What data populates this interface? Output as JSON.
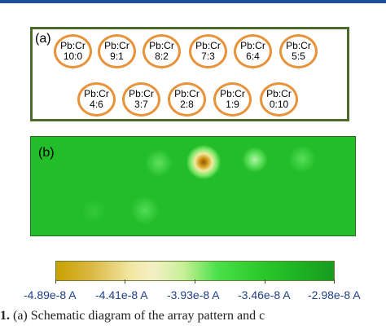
{
  "panel_a": {
    "label": "(a)",
    "spots": [
      {
        "line1": "Pb:Cr",
        "line2": "10:0"
      },
      {
        "line1": "Pb:Cr",
        "line2": "9:1"
      },
      {
        "line1": "Pb:Cr",
        "line2": "8:2"
      },
      {
        "line1": "Pb:Cr",
        "line2": "7:3"
      },
      {
        "line1": "Pb:Cr",
        "line2": "6:4"
      },
      {
        "line1": "Pb:Cr",
        "line2": "5:5"
      },
      {
        "line1": "Pb:Cr",
        "line2": "4:6"
      },
      {
        "line1": "Pb:Cr",
        "line2": "3:7"
      },
      {
        "line1": "Pb:Cr",
        "line2": "2:8"
      },
      {
        "line1": "Pb:Cr",
        "line2": "1:9"
      },
      {
        "line1": "Pb:Cr",
        "line2": "0:10"
      }
    ]
  },
  "panel_b": {
    "label": "(b)"
  },
  "colorbar": {
    "ticks": [
      "-4.89e-8 A",
      "-4.41e-8 A",
      "-3.93e-8 A",
      "-3.46e-8 A",
      "-2.98e-8 A"
    ]
  },
  "caption": {
    "prefix": "1.",
    "text": "(a) Schematic diagram of the array pattern and c"
  },
  "colors": {
    "frame": "#4a6b2c",
    "spot_ring": "#e8923a",
    "map_green": "#23bd2a",
    "tick_text": "#1f3f86"
  }
}
